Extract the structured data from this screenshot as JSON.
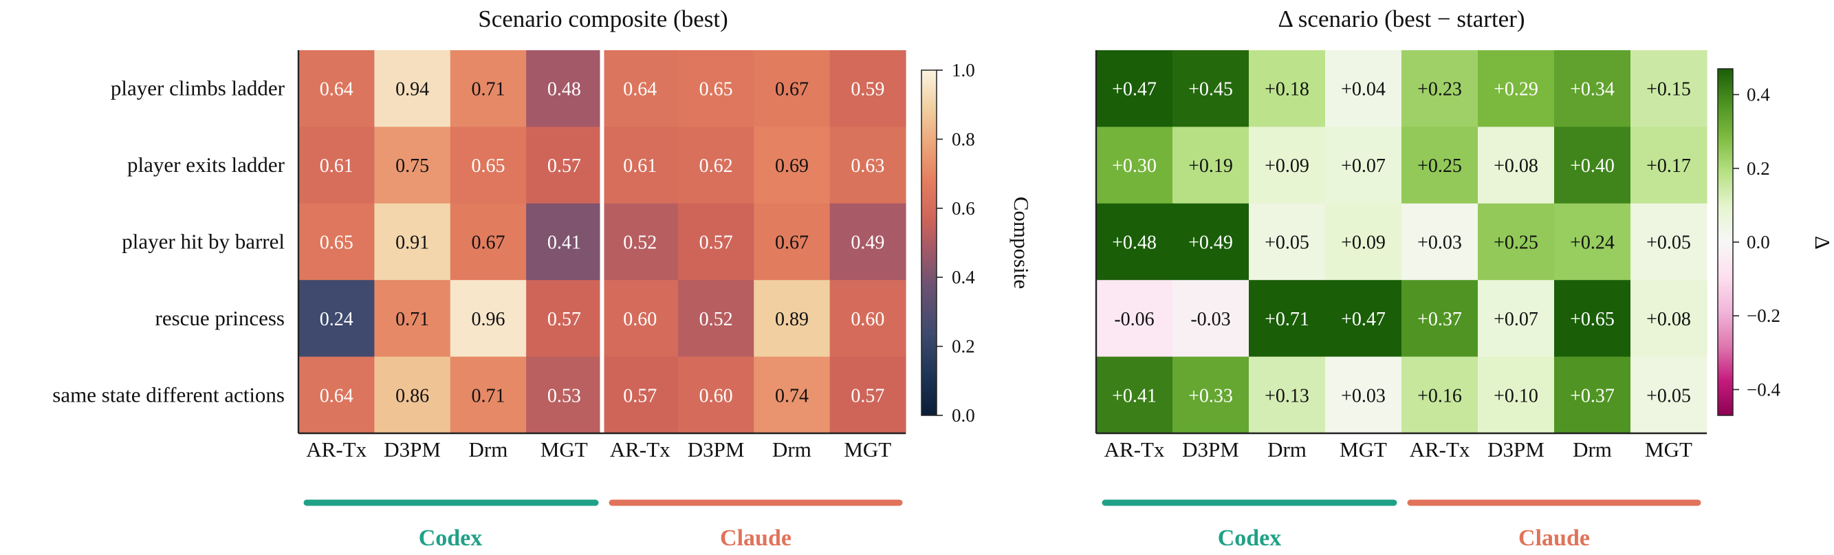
{
  "chart_data": [
    {
      "type": "heatmap",
      "title": "Scenario composite (best)",
      "rows": [
        "player climbs ladder",
        "player exits ladder",
        "player hit by barrel",
        "rescue princess",
        "same state different actions"
      ],
      "columns": [
        "AR-Tx",
        "D3PM",
        "Drm",
        "MGT",
        "AR-Tx",
        "D3PM",
        "Drm",
        "MGT"
      ],
      "groups": [
        {
          "name": "Codex",
          "color": "#1fa187"
        },
        {
          "name": "Claude",
          "color": "#e0735a"
        }
      ],
      "values": [
        [
          0.64,
          0.94,
          0.71,
          0.48,
          0.64,
          0.65,
          0.67,
          0.59
        ],
        [
          0.61,
          0.75,
          0.65,
          0.57,
          0.61,
          0.62,
          0.69,
          0.63
        ],
        [
          0.65,
          0.91,
          0.67,
          0.41,
          0.52,
          0.57,
          0.67,
          0.49
        ],
        [
          0.24,
          0.71,
          0.96,
          0.57,
          0.6,
          0.52,
          0.89,
          0.6
        ],
        [
          0.64,
          0.86,
          0.71,
          0.53,
          0.57,
          0.6,
          0.74,
          0.57
        ]
      ],
      "labels": [
        [
          "0.64",
          "0.94",
          "0.71",
          "0.48",
          "0.64",
          "0.65",
          "0.67",
          "0.59"
        ],
        [
          "0.61",
          "0.75",
          "0.65",
          "0.57",
          "0.61",
          "0.62",
          "0.69",
          "0.63"
        ],
        [
          "0.65",
          "0.91",
          "0.67",
          "0.41",
          "0.52",
          "0.57",
          "0.67",
          "0.49"
        ],
        [
          "0.24",
          "0.71",
          "0.96",
          "0.57",
          "0.60",
          "0.52",
          "0.89",
          "0.60"
        ],
        [
          "0.64",
          "0.86",
          "0.71",
          "0.53",
          "0.57",
          "0.60",
          "0.74",
          "0.57"
        ]
      ],
      "colorbar": {
        "label": "Composite",
        "range": [
          0,
          1
        ],
        "ticks": [
          "0.0",
          "0.2",
          "0.4",
          "0.6",
          "0.8",
          "1.0"
        ]
      }
    },
    {
      "type": "heatmap",
      "title": "Δ scenario (best − starter)",
      "rows": [
        "player climbs ladder",
        "player exits ladder",
        "player hit by barrel",
        "rescue princess",
        "same state different actions"
      ],
      "columns": [
        "AR-Tx",
        "D3PM",
        "Drm",
        "MGT",
        "AR-Tx",
        "D3PM",
        "Drm",
        "MGT"
      ],
      "groups": [
        {
          "name": "Codex",
          "color": "#1fa187"
        },
        {
          "name": "Claude",
          "color": "#e0735a"
        }
      ],
      "values": [
        [
          0.47,
          0.45,
          0.18,
          0.04,
          0.23,
          0.29,
          0.34,
          0.15
        ],
        [
          0.3,
          0.19,
          0.09,
          0.07,
          0.25,
          0.08,
          0.4,
          0.17
        ],
        [
          0.48,
          0.49,
          0.05,
          0.09,
          0.03,
          0.25,
          0.24,
          0.05
        ],
        [
          -0.06,
          -0.03,
          0.71,
          0.47,
          0.37,
          0.07,
          0.65,
          0.08
        ],
        [
          0.41,
          0.33,
          0.13,
          0.03,
          0.16,
          0.1,
          0.37,
          0.05
        ]
      ],
      "labels": [
        [
          "+0.47",
          "+0.45",
          "+0.18",
          "+0.04",
          "+0.23",
          "+0.29",
          "+0.34",
          "+0.15"
        ],
        [
          "+0.30",
          "+0.19",
          "+0.09",
          "+0.07",
          "+0.25",
          "+0.08",
          "+0.40",
          "+0.17"
        ],
        [
          "+0.48",
          "+0.49",
          "+0.05",
          "+0.09",
          "+0.03",
          "+0.25",
          "+0.24",
          "+0.05"
        ],
        [
          "-0.06",
          "-0.03",
          "+0.71",
          "+0.47",
          "+0.37",
          "+0.07",
          "+0.65",
          "+0.08"
        ],
        [
          "+0.41",
          "+0.33",
          "+0.13",
          "+0.03",
          "+0.16",
          "+0.10",
          "+0.37",
          "+0.05"
        ]
      ],
      "colorbar": {
        "label": "Δ",
        "range": [
          -0.47,
          0.47
        ],
        "ticks": [
          "−0.4",
          "−0.2",
          "0.0",
          "0.2",
          "0.4"
        ],
        "tick_values": [
          -0.4,
          -0.2,
          0.0,
          0.2,
          0.4
        ]
      }
    }
  ]
}
